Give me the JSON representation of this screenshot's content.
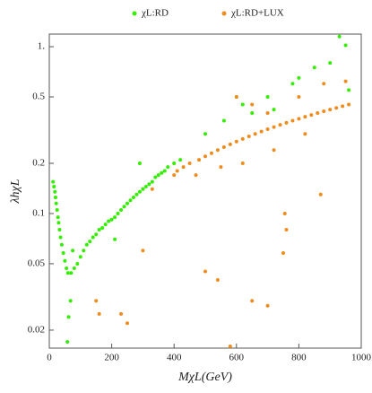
{
  "chart_data": {
    "type": "scatter",
    "xlabel": "MχL(GeV)",
    "ylabel": "λhχL",
    "xlim": [
      0,
      1000
    ],
    "xticks": [
      0,
      200,
      400,
      600,
      800,
      1000
    ],
    "ylim": [
      0.0156,
      1.19
    ],
    "log_y": true,
    "yticks": [
      0.02,
      0.05,
      0.1,
      0.2,
      0.5,
      {
        "value": 1,
        "label": "1."
      }
    ],
    "series": [
      {
        "name": "χL:RD",
        "color": "#33ee00",
        "x": [
          12,
          15,
          18,
          20,
          22,
          25,
          28,
          30,
          33,
          36,
          40,
          45,
          50,
          55,
          60,
          70,
          62,
          58,
          68,
          75,
          80,
          90,
          100,
          110,
          120,
          130,
          140,
          150,
          160,
          170,
          180,
          190,
          200,
          210,
          220,
          230,
          240,
          250,
          260,
          270,
          280,
          290,
          300,
          310,
          320,
          330,
          340,
          350,
          360,
          370,
          380,
          290,
          210,
          400,
          420,
          500,
          560,
          600,
          620,
          650,
          700,
          720,
          780,
          800,
          850,
          900,
          930,
          950,
          960
        ],
        "values": [
          0.155,
          0.145,
          0.135,
          0.125,
          0.115,
          0.105,
          0.095,
          0.088,
          0.08,
          0.072,
          0.065,
          0.058,
          0.052,
          0.047,
          0.044,
          0.044,
          0.024,
          0.017,
          0.03,
          0.06,
          0.047,
          0.05,
          0.055,
          0.06,
          0.065,
          0.068,
          0.072,
          0.075,
          0.08,
          0.082,
          0.086,
          0.09,
          0.092,
          0.095,
          0.1,
          0.105,
          0.11,
          0.115,
          0.12,
          0.125,
          0.13,
          0.135,
          0.14,
          0.145,
          0.15,
          0.155,
          0.165,
          0.17,
          0.175,
          0.18,
          0.19,
          0.2,
          0.07,
          0.2,
          0.21,
          0.3,
          0.36,
          0.5,
          0.45,
          0.4,
          0.5,
          0.42,
          0.6,
          0.65,
          0.75,
          0.8,
          1.15,
          1.02,
          0.55
        ]
      },
      {
        "name": "χL:RD+LUX",
        "color": "#f08c1e",
        "x": [
          150,
          160,
          230,
          250,
          300,
          330,
          400,
          410,
          430,
          450,
          470,
          480,
          500,
          520,
          540,
          560,
          580,
          600,
          620,
          640,
          660,
          680,
          700,
          720,
          740,
          760,
          780,
          800,
          820,
          840,
          860,
          880,
          900,
          920,
          940,
          960,
          500,
          540,
          580,
          650,
          700,
          750,
          760,
          755,
          870,
          600,
          650,
          700,
          800,
          880,
          950,
          550,
          620,
          720,
          820
        ],
        "values": [
          0.03,
          0.025,
          0.025,
          0.022,
          0.06,
          0.14,
          0.17,
          0.18,
          0.19,
          0.2,
          0.17,
          0.21,
          0.22,
          0.23,
          0.24,
          0.25,
          0.26,
          0.27,
          0.28,
          0.29,
          0.3,
          0.31,
          0.32,
          0.33,
          0.34,
          0.35,
          0.36,
          0.37,
          0.38,
          0.39,
          0.4,
          0.41,
          0.42,
          0.43,
          0.44,
          0.45,
          0.045,
          0.04,
          0.016,
          0.03,
          0.028,
          0.058,
          0.08,
          0.1,
          0.13,
          0.5,
          0.45,
          0.4,
          0.5,
          0.6,
          0.62,
          0.19,
          0.2,
          0.24,
          0.3
        ]
      }
    ]
  }
}
